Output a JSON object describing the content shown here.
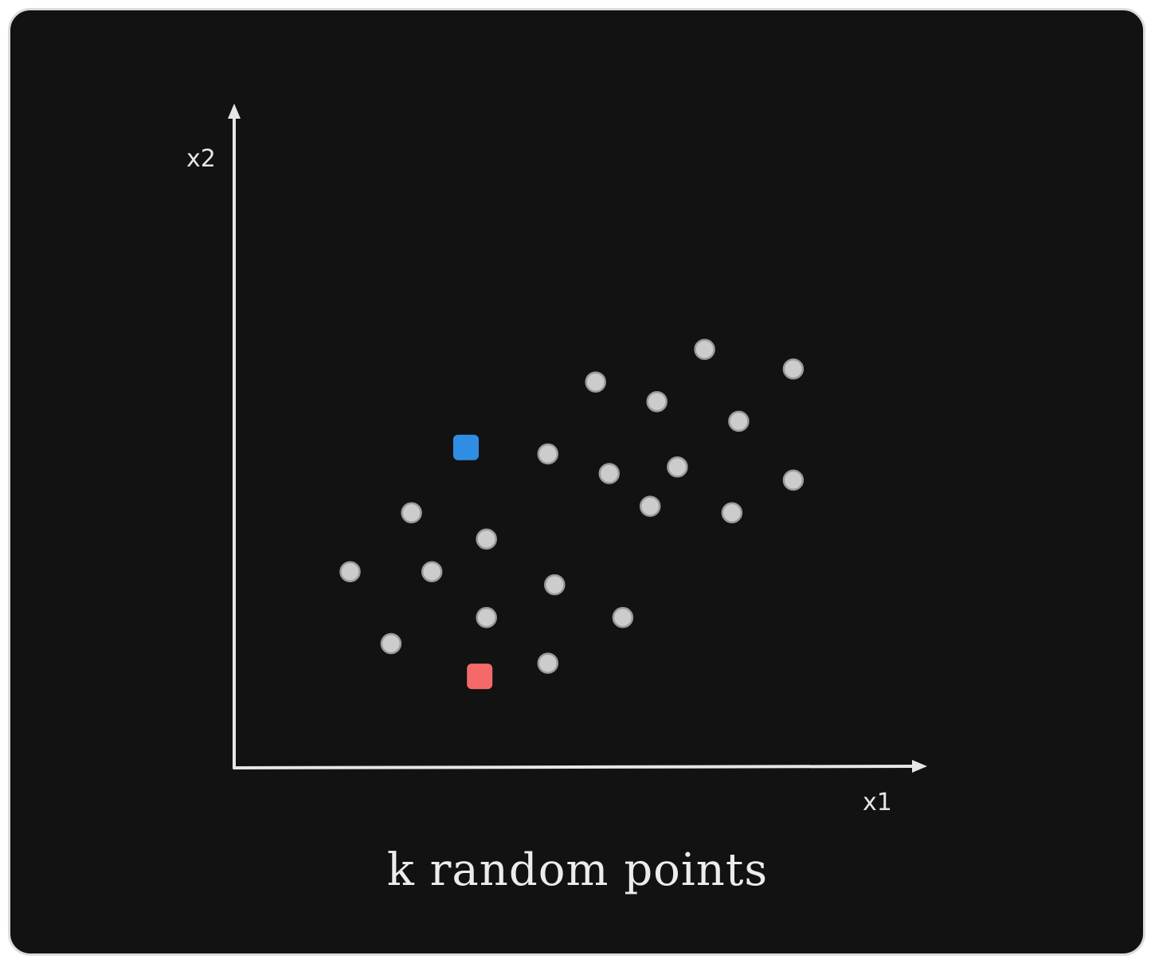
{
  "diagram": {
    "x_axis_label": "x1",
    "y_axis_label": "x2",
    "caption": "k random points",
    "colors": {
      "background": "#121212",
      "frame_border": "#dcdcdc",
      "axis": "#e6e6e6",
      "point": "#cccccc",
      "point_outline": "#9a9a9a",
      "centroid_a": "#2f8de4",
      "centroid_b": "#f46a6a"
    }
  },
  "chart_data": {
    "type": "scatter",
    "title": "k random points",
    "xlabel": "x1",
    "ylabel": "x2",
    "xlim": [
      0,
      10
    ],
    "ylim": [
      0,
      10
    ],
    "grid": false,
    "series": [
      {
        "points": [
          [
            1.7,
            3.0
          ],
          [
            2.6,
            3.9
          ],
          [
            2.9,
            3.0
          ],
          [
            2.3,
            1.9
          ],
          [
            3.7,
            3.5
          ],
          [
            3.7,
            2.3
          ],
          [
            4.6,
            1.6
          ],
          [
            4.6,
            4.8
          ],
          [
            4.7,
            2.8
          ],
          [
            5.3,
            5.9
          ],
          [
            5.5,
            4.5
          ],
          [
            5.7,
            2.3
          ],
          [
            6.1,
            4.0
          ],
          [
            6.2,
            5.6
          ],
          [
            6.5,
            4.6
          ],
          [
            6.9,
            6.4
          ],
          [
            7.3,
            3.9
          ],
          [
            7.4,
            5.3
          ],
          [
            8.2,
            6.1
          ],
          [
            8.2,
            4.4
          ]
        ]
      },
      {
        "points": [
          [
            3.4,
            4.9
          ]
        ]
      },
      {
        "points": [
          [
            3.6,
            1.4
          ]
        ]
      }
    ]
  }
}
